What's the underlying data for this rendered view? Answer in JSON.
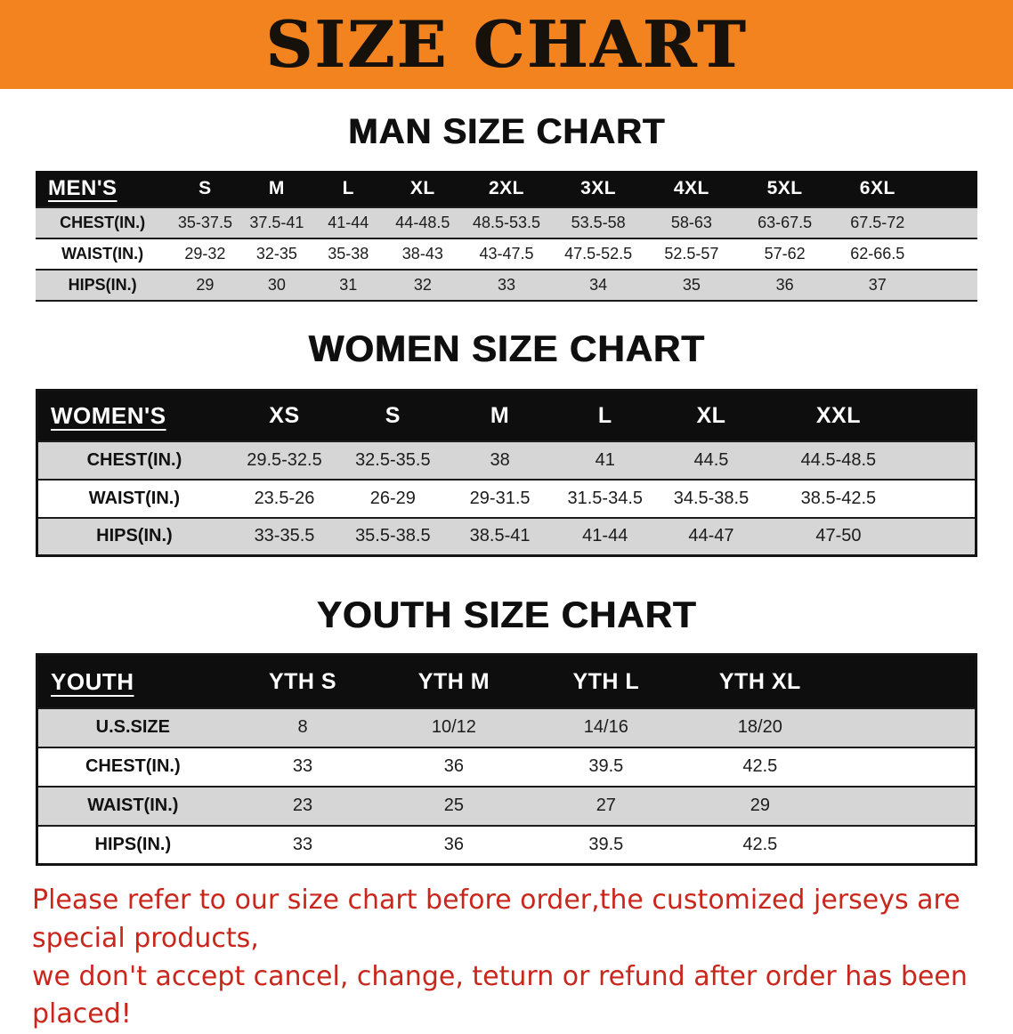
{
  "banner": {
    "title": "SIZE CHART",
    "bg_color": "#f2831f",
    "text_color": "#17110b"
  },
  "men": {
    "heading": "MAN SIZE CHART",
    "table": {
      "header": [
        "MEN'S",
        "S",
        "M",
        "L",
        "XL",
        "2XL",
        "3XL",
        "4XL",
        "5XL",
        "6XL"
      ],
      "rows": [
        [
          "CHEST(IN.)",
          "35-37.5",
          "37.5-41",
          "41-44",
          "44-48.5",
          "48.5-53.5",
          "53.5-58",
          "58-63",
          "63-67.5",
          "67.5-72"
        ],
        [
          "WAIST(IN.)",
          "29-32",
          "32-35",
          "35-38",
          "38-43",
          "43-47.5",
          "47.5-52.5",
          "52.5-57",
          "57-62",
          "62-66.5"
        ],
        [
          "HIPS(IN.)",
          "29",
          "30",
          "31",
          "32",
          "33",
          "34",
          "35",
          "36",
          "37"
        ]
      ]
    }
  },
  "women": {
    "heading": "WOMEN SIZE CHART",
    "table": {
      "header": [
        "WOMEN'S",
        "XS",
        "S",
        "M",
        "L",
        "XL",
        "XXL"
      ],
      "rows": [
        [
          "CHEST(IN.)",
          "29.5-32.5",
          "32.5-35.5",
          "38",
          "41",
          "44.5",
          "44.5-48.5"
        ],
        [
          "WAIST(IN.)",
          "23.5-26",
          "26-29",
          "29-31.5",
          "31.5-34.5",
          "34.5-38.5",
          "38.5-42.5"
        ],
        [
          "HIPS(IN.)",
          "33-35.5",
          "35.5-38.5",
          "38.5-41",
          "41-44",
          "44-47",
          "47-50"
        ]
      ]
    }
  },
  "youth": {
    "heading": "YOUTH SIZE CHART",
    "table": {
      "header": [
        "YOUTH",
        "YTH S",
        "YTH M",
        "YTH L",
        "YTH XL"
      ],
      "rows": [
        [
          "U.S.SIZE",
          "8",
          "10/12",
          "14/16",
          "18/20"
        ],
        [
          "CHEST(IN.)",
          "33",
          "36",
          "39.5",
          "42.5"
        ],
        [
          "WAIST(IN.)",
          "23",
          "25",
          "27",
          "29"
        ],
        [
          "HIPS(IN.)",
          "33",
          "36",
          "39.5",
          "42.5"
        ]
      ]
    }
  },
  "disclaimer": {
    "line1": "Please refer to our size chart before order,the customized jerseys are special products,",
    "line2": "we don't accept cancel, change, teturn or refund after order has been placed!",
    "color": "#c9271c"
  }
}
